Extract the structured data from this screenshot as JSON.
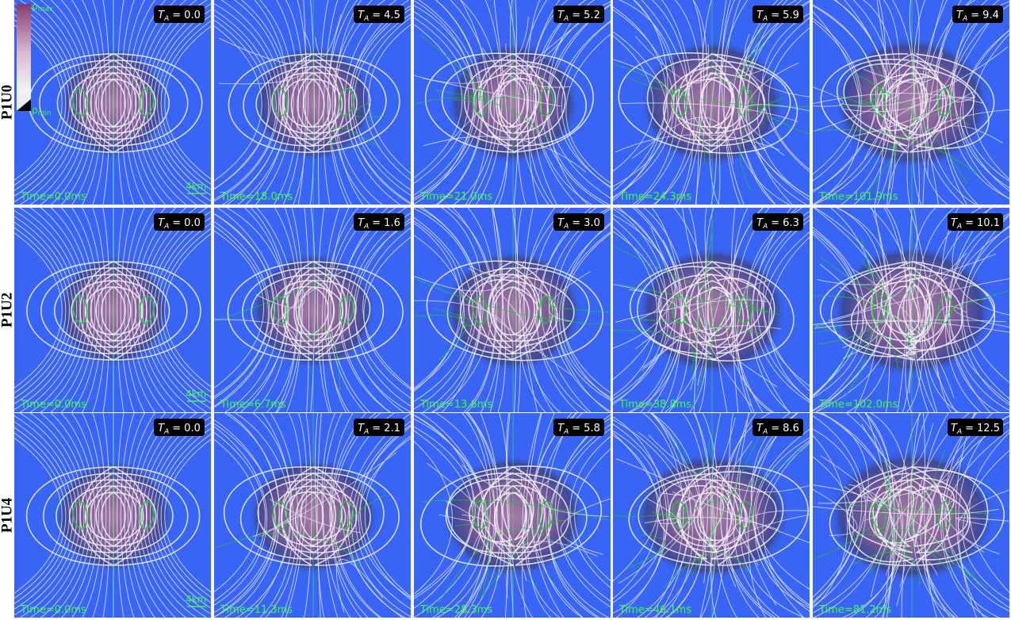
{
  "ta_symbol": "T",
  "ta_subscript": "A",
  "equals": "=",
  "scale_bar": "4km",
  "colorbar": {
    "symbol": "ρ",
    "max_sub": "max",
    "min_sub": "min"
  },
  "rows": [
    {
      "label": "P1U0",
      "panels": [
        {
          "ta": "0.0",
          "time": "Time=0.0ms"
        },
        {
          "ta": "4.5",
          "time": "Time=18.0ms"
        },
        {
          "ta": "5.2",
          "time": "Time=21.0ms"
        },
        {
          "ta": "5.9",
          "time": "Time=24.3ms"
        },
        {
          "ta": "9.4",
          "time": "Time=101.9ms"
        }
      ]
    },
    {
      "label": "P1U2",
      "panels": [
        {
          "ta": "0.0",
          "time": "Time=0.0ms"
        },
        {
          "ta": "1.6",
          "time": "Time=6.7ms"
        },
        {
          "ta": "3.0",
          "time": "Time=13.6ms"
        },
        {
          "ta": "6.3",
          "time": "Time=38.8ms"
        },
        {
          "ta": "10.1",
          "time": "Time=102.0ms"
        }
      ]
    },
    {
      "label": "P1U4",
      "panels": [
        {
          "ta": "0.0",
          "time": "Time=0.0ms"
        },
        {
          "ta": "2.1",
          "time": "Time=11.3ms"
        },
        {
          "ta": "5.8",
          "time": "Time=28.3ms"
        },
        {
          "ta": "8.6",
          "time": "Time=46.1ms"
        },
        {
          "ta": "12.5",
          "time": "Time=81.2ms"
        }
      ]
    }
  ]
}
